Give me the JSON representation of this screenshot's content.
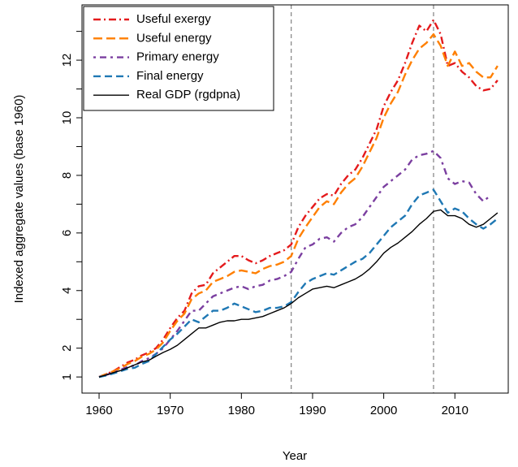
{
  "chart_data": {
    "type": "line",
    "xlabel": "Year",
    "ylabel": "Indexed aggregate values (base 1960)",
    "x": [
      1960,
      1961,
      1962,
      1963,
      1964,
      1965,
      1966,
      1967,
      1968,
      1969,
      1970,
      1971,
      1972,
      1973,
      1974,
      1975,
      1976,
      1977,
      1978,
      1979,
      1980,
      1981,
      1982,
      1983,
      1984,
      1985,
      1986,
      1987,
      1988,
      1989,
      1990,
      1991,
      1992,
      1993,
      1994,
      1995,
      1996,
      1997,
      1998,
      1999,
      2000,
      2001,
      2002,
      2003,
      2004,
      2005,
      2006,
      2007,
      2008,
      2009,
      2010,
      2011,
      2012,
      2013,
      2014,
      2015,
      2016
    ],
    "series": [
      {
        "name": "Useful exergy",
        "color": "#e41a1c",
        "dash": "9,4,2,4",
        "values": [
          1.0,
          1.1,
          1.2,
          1.35,
          1.5,
          1.6,
          1.75,
          1.85,
          2.0,
          2.3,
          2.7,
          3.05,
          3.3,
          3.9,
          4.15,
          4.2,
          4.6,
          4.8,
          5.0,
          5.2,
          5.2,
          5.05,
          4.95,
          5.05,
          5.2,
          5.3,
          5.4,
          5.6,
          6.2,
          6.6,
          6.9,
          7.2,
          7.35,
          7.3,
          7.7,
          8.0,
          8.2,
          8.6,
          9.1,
          9.6,
          10.4,
          10.9,
          11.3,
          11.9,
          12.6,
          13.2,
          13.0,
          13.4,
          12.9,
          11.8,
          11.9,
          11.6,
          11.4,
          11.1,
          10.95,
          11.0,
          11.3
        ]
      },
      {
        "name": "Useful energy",
        "color": "#ff7f00",
        "dash": "11,5",
        "values": [
          1.0,
          1.1,
          1.2,
          1.3,
          1.45,
          1.55,
          1.7,
          1.8,
          1.95,
          2.2,
          2.6,
          2.95,
          3.2,
          3.7,
          3.9,
          4.0,
          4.3,
          4.4,
          4.5,
          4.65,
          4.7,
          4.65,
          4.6,
          4.75,
          4.85,
          4.9,
          5.0,
          5.2,
          5.8,
          6.2,
          6.55,
          6.9,
          7.1,
          7.0,
          7.4,
          7.7,
          7.9,
          8.3,
          8.8,
          9.3,
          10.0,
          10.5,
          10.9,
          11.5,
          12.0,
          12.4,
          12.6,
          12.9,
          12.5,
          11.8,
          12.3,
          11.8,
          11.9,
          11.6,
          11.4,
          11.4,
          11.8
        ]
      },
      {
        "name": "Primary energy",
        "color": "#7b3fa0",
        "dash": "3,5,8,5",
        "values": [
          1.0,
          1.07,
          1.15,
          1.25,
          1.35,
          1.4,
          1.55,
          1.65,
          1.8,
          2.0,
          2.3,
          2.6,
          2.95,
          3.3,
          3.3,
          3.55,
          3.8,
          3.9,
          4.0,
          4.1,
          4.15,
          4.05,
          4.15,
          4.2,
          4.35,
          4.4,
          4.5,
          4.65,
          5.1,
          5.5,
          5.6,
          5.8,
          5.85,
          5.7,
          6.0,
          6.2,
          6.3,
          6.55,
          6.9,
          7.25,
          7.6,
          7.8,
          8.0,
          8.2,
          8.55,
          8.7,
          8.75,
          8.85,
          8.6,
          7.9,
          7.7,
          7.8,
          7.75,
          7.35,
          7.1,
          7.3,
          null
        ]
      },
      {
        "name": "Final energy",
        "color": "#1f78b4",
        "dash": "9,5",
        "values": [
          1.0,
          1.05,
          1.12,
          1.2,
          1.28,
          1.32,
          1.45,
          1.55,
          1.8,
          2.05,
          2.3,
          2.5,
          2.75,
          3.0,
          2.9,
          3.1,
          3.3,
          3.3,
          3.4,
          3.55,
          3.45,
          3.35,
          3.25,
          3.3,
          3.4,
          3.4,
          3.45,
          3.6,
          3.95,
          4.25,
          4.4,
          4.5,
          4.6,
          4.55,
          4.7,
          4.85,
          5.0,
          5.1,
          5.3,
          5.6,
          5.9,
          6.2,
          6.4,
          6.6,
          7.0,
          7.3,
          7.4,
          7.5,
          7.1,
          6.7,
          6.85,
          6.75,
          6.5,
          6.3,
          6.15,
          6.3,
          6.5
        ]
      },
      {
        "name": "Real GDP (rgdpna)",
        "color": "#000000",
        "dash": "none",
        "values": [
          1.0,
          1.07,
          1.15,
          1.22,
          1.32,
          1.42,
          1.52,
          1.58,
          1.72,
          1.85,
          1.96,
          2.1,
          2.3,
          2.5,
          2.7,
          2.7,
          2.8,
          2.9,
          2.95,
          2.95,
          3.0,
          3.0,
          3.05,
          3.1,
          3.2,
          3.3,
          3.4,
          3.55,
          3.75,
          3.9,
          4.05,
          4.1,
          4.15,
          4.1,
          4.2,
          4.3,
          4.4,
          4.55,
          4.75,
          5.0,
          5.3,
          5.5,
          5.65,
          5.85,
          6.05,
          6.3,
          6.5,
          6.75,
          6.8,
          6.6,
          6.6,
          6.5,
          6.3,
          6.2,
          6.3,
          6.5,
          6.7
        ]
      }
    ],
    "xlim": [
      1957.6,
      2017.5
    ],
    "ylim": [
      0.44,
      13.92
    ],
    "xticks": [
      1960,
      1970,
      1980,
      1990,
      2000,
      2010
    ],
    "yticks": [
      1,
      2,
      4,
      6,
      8,
      10,
      12
    ],
    "yminorticks": [
      3,
      5,
      7,
      9,
      11,
      13
    ],
    "vlines": [
      1987,
      2007
    ],
    "vline_color": "#808080",
    "legend": "top-left"
  }
}
